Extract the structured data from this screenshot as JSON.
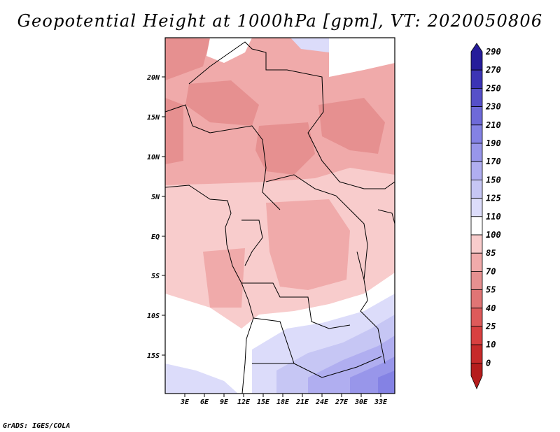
{
  "title": "Geopotential Height at 1000hPa [gpm], VT: 2020050806",
  "credit": "GrADS: IGES/COLA",
  "map": {
    "lat_labels": [
      "20N",
      "15N",
      "10N",
      "5N",
      "EQ",
      "5S",
      "10S",
      "15S"
    ],
    "lon_labels": [
      "3E",
      "6E",
      "9E",
      "12E",
      "15E",
      "18E",
      "21E",
      "24E",
      "27E",
      "30E",
      "33E"
    ]
  },
  "colorbar": {
    "levels": [
      "0",
      "10",
      "25",
      "40",
      "55",
      "70",
      "85",
      "100",
      "110",
      "125",
      "150",
      "170",
      "190",
      "210",
      "230",
      "250",
      "270",
      "290"
    ],
    "colors": [
      "#b51c1c",
      "#c62a2a",
      "#d84040",
      "#dd5a5a",
      "#e07575",
      "#e69090",
      "#f0aaaa",
      "#f8cccc",
      "#ffffff",
      "#dcdcfa",
      "#c6c6f4",
      "#b0aef0",
      "#9896ea",
      "#8482e4",
      "#6e6ad8",
      "#5650c8",
      "#3c34b4",
      "#261c9a"
    ]
  },
  "colors": {
    "frame": "#000000",
    "background": "#ffffff"
  }
}
